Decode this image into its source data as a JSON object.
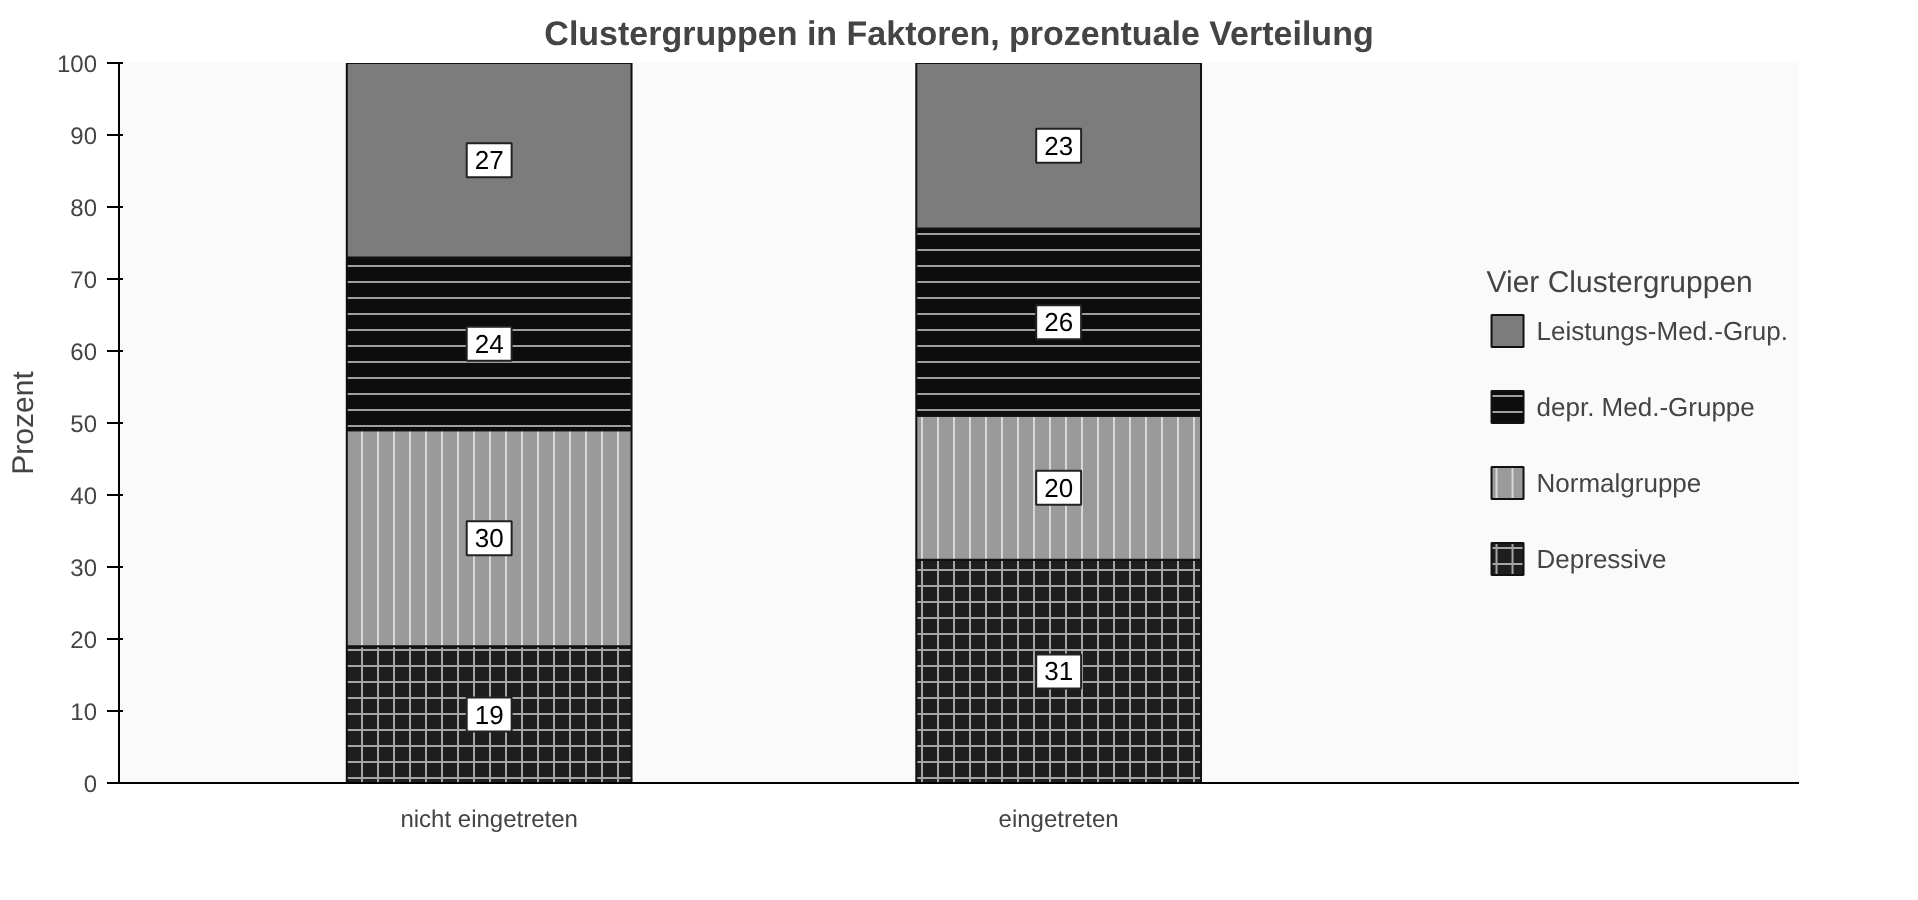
{
  "chart_data": {
    "type": "bar",
    "title": "Clustergruppen in Faktoren, prozentuale Verteilung",
    "ylabel": "Prozent",
    "legend_title": "Vier Clustergruppen",
    "categories": [
      "nicht eingetreten",
      "eingetreten"
    ],
    "stacked": true,
    "data_labels": true,
    "legend": "right",
    "grid": false,
    "ylim": [
      0,
      100
    ],
    "yticks": [
      0,
      10,
      20,
      30,
      40,
      50,
      60,
      70,
      80,
      90,
      100
    ],
    "series": [
      {
        "name": "Depressive",
        "color": "#1e1e1e",
        "values": [
          19,
          31
        ]
      },
      {
        "name": "Normalgruppe",
        "color": "#9a9a9a",
        "values": [
          30,
          20
        ]
      },
      {
        "name": "depr. Med.-Gruppe",
        "color": "#0d0d0d",
        "values": [
          24,
          26
        ]
      },
      {
        "name": "Leistungs-Med.-Grup.",
        "color": "#7c7c7c",
        "values": [
          27,
          23
        ]
      }
    ]
  }
}
